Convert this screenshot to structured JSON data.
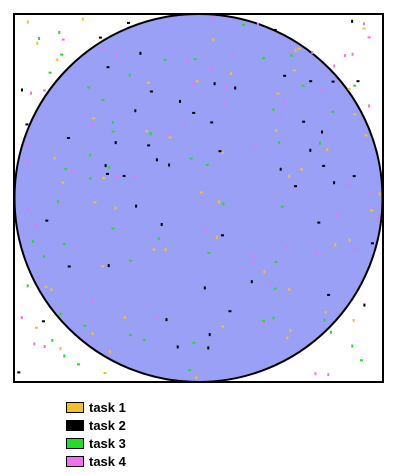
{
  "diagram": {
    "region_colors": {
      "square_fill": "#ffffff",
      "circle_fill": "#9aa0f5",
      "outline": "#000000"
    },
    "tasks": [
      {
        "label": "task 1",
        "color": "#f5bf2a"
      },
      {
        "label": "task 2",
        "color": "#000000"
      },
      {
        "label": "task 3",
        "color": "#22dd2a"
      },
      {
        "label": "task 4",
        "color": "#f070f0"
      }
    ],
    "samples_per_task": 55,
    "random_seed": 7
  }
}
